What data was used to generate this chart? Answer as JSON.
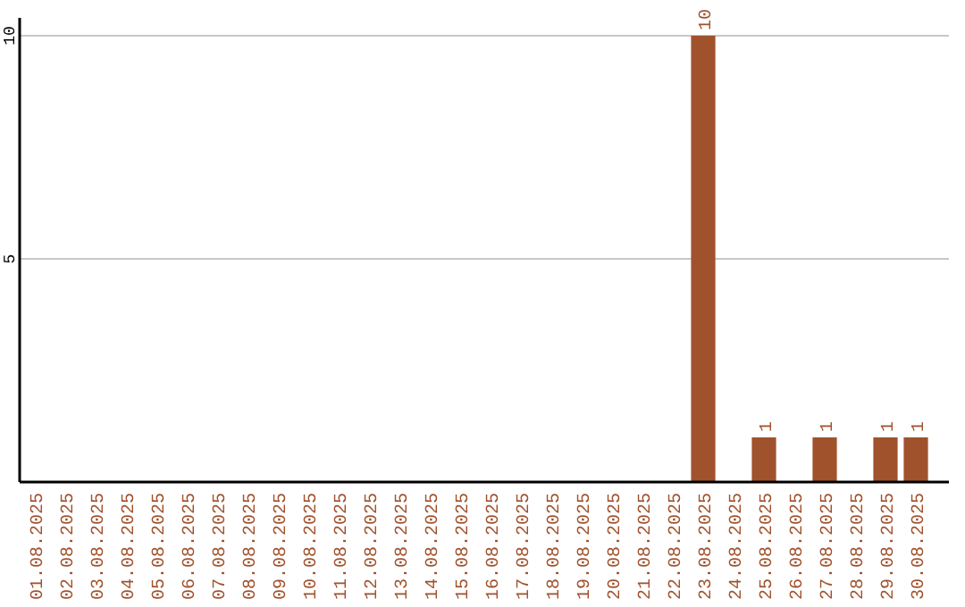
{
  "chart_data": {
    "type": "bar",
    "categories": [
      "01.08.2025",
      "02.08.2025",
      "03.08.2025",
      "04.08.2025",
      "05.08.2025",
      "06.08.2025",
      "07.08.2025",
      "08.08.2025",
      "09.08.2025",
      "10.08.2025",
      "11.08.2025",
      "12.08.2025",
      "13.08.2025",
      "14.08.2025",
      "15.08.2025",
      "16.08.2025",
      "17.08.2025",
      "18.08.2025",
      "19.08.2025",
      "20.08.2025",
      "21.08.2025",
      "22.08.2025",
      "23.08.2025",
      "24.08.2025",
      "25.08.2025",
      "26.08.2025",
      "27.08.2025",
      "28.08.2025",
      "29.08.2025",
      "30.08.2025"
    ],
    "values": [
      0,
      0,
      0,
      0,
      0,
      0,
      0,
      0,
      0,
      0,
      0,
      0,
      0,
      0,
      0,
      0,
      0,
      0,
      0,
      0,
      0,
      0,
      10,
      0,
      1,
      0,
      1,
      0,
      1,
      1
    ],
    "value_labels": [
      null,
      null,
      null,
      null,
      null,
      null,
      null,
      null,
      null,
      null,
      null,
      null,
      null,
      null,
      null,
      null,
      null,
      null,
      null,
      null,
      null,
      null,
      "10",
      null,
      "1",
      null,
      "1",
      null,
      "1",
      "1"
    ],
    "color": "#a0522d",
    "ylim": [
      0,
      10.4
    ],
    "yticks": [
      5,
      10
    ],
    "grid": "y"
  }
}
